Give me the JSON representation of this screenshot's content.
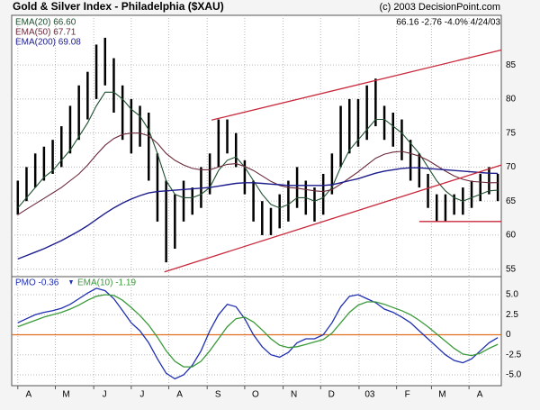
{
  "chart_data": [
    {
      "type": "hilo",
      "title": "Gold & Silver Index - Philadelphia ($XAU)",
      "credit": "(c) 2003 DecisionPoint.com",
      "quote": "66.16  -2.76  -4.0%  4/24/03",
      "color": "#000000",
      "high": [
        68,
        70,
        72,
        73,
        74,
        76,
        79,
        82,
        84,
        88,
        89,
        86,
        82,
        80,
        79,
        78,
        72,
        68,
        66,
        68,
        67,
        70,
        72,
        77,
        77,
        75,
        71,
        68,
        65,
        64,
        66,
        68,
        70,
        68,
        67,
        69,
        72,
        79,
        80,
        80,
        82,
        83,
        79,
        78,
        77,
        74,
        72,
        69,
        66,
        66,
        66,
        67,
        68,
        69,
        70,
        69
      ],
      "low": [
        63,
        65,
        67,
        68,
        69,
        70,
        72,
        74,
        77,
        80,
        82,
        78,
        74,
        72,
        73,
        68,
        62,
        56,
        58,
        62,
        63,
        64,
        66,
        70,
        72,
        70,
        66,
        62,
        60,
        60,
        61,
        62,
        64,
        63,
        62,
        63,
        66,
        70,
        72,
        73,
        74,
        76,
        74,
        73,
        71,
        68,
        67,
        64,
        62,
        62,
        63,
        63,
        64,
        65,
        66,
        65
      ],
      "series": [
        {
          "name": "EMA(20) 66.60",
          "color": "#1f4f2f",
          "values": [
            64,
            65.5,
            67,
            68.5,
            69.5,
            71,
            72.5,
            74.5,
            76.5,
            79,
            81,
            81,
            80,
            78.5,
            77.5,
            75.5,
            72,
            68,
            66,
            65.5,
            65.5,
            66,
            67,
            69.5,
            71,
            71.5,
            70,
            68,
            66,
            64.5,
            64,
            64.5,
            65.5,
            65.5,
            65,
            65.5,
            67,
            70,
            72.5,
            74,
            75.5,
            77,
            77,
            76,
            75,
            73.5,
            72,
            70,
            68,
            66.5,
            65.5,
            65,
            65.5,
            66,
            66.5,
            66.6
          ]
        },
        {
          "name": "EMA(50) 67.71",
          "color": "#6b2a3a",
          "values": [
            63,
            63.8,
            64.6,
            65.4,
            66.2,
            67,
            68,
            69,
            70.3,
            71.8,
            73.2,
            74.2,
            74.8,
            75,
            75,
            74.6,
            73.5,
            72,
            71,
            70.3,
            69.8,
            69.6,
            69.6,
            70,
            70.4,
            70.5,
            70.1,
            69.5,
            68.7,
            67.9,
            67.3,
            67,
            66.9,
            66.7,
            66.5,
            66.4,
            66.7,
            67.5,
            68.4,
            69.3,
            70.3,
            71.3,
            71.9,
            72.2,
            72.3,
            72,
            71.6,
            71,
            70.2,
            69.4,
            68.7,
            68.2,
            67.9,
            67.8,
            67.7,
            67.71
          ]
        },
        {
          "name": "EMA(200) 69.08",
          "color": "#1c1c8c",
          "values": [
            56.5,
            57,
            57.5,
            58,
            58.6,
            59.2,
            59.9,
            60.6,
            61.4,
            62.3,
            63.2,
            64,
            64.7,
            65.3,
            65.8,
            66.2,
            66.4,
            66.5,
            66.6,
            66.7,
            66.8,
            66.9,
            67,
            67.2,
            67.4,
            67.6,
            67.7,
            67.7,
            67.6,
            67.5,
            67.4,
            67.3,
            67.3,
            67.3,
            67.3,
            67.3,
            67.4,
            67.7,
            68,
            68.3,
            68.7,
            69.1,
            69.4,
            69.6,
            69.8,
            69.9,
            69.9,
            69.8,
            69.7,
            69.6,
            69.5,
            69.4,
            69.3,
            69.2,
            69.1,
            69.08
          ]
        }
      ],
      "trendlines": [
        {
          "color": "#c8283c",
          "x": [
            16.8,
            55.4
          ],
          "values": [
            54.6,
            70.3
          ]
        },
        {
          "color": "#c8283c",
          "x": [
            22.2,
            55.4
          ],
          "values": [
            76.9,
            87.2
          ]
        },
        {
          "color": "#c8283c",
          "x": [
            46,
            55.4
          ],
          "values": [
            62,
            62
          ]
        }
      ],
      "xlim": [
        -0.7,
        55.4
      ],
      "ylim": [
        53.9,
        92.3
      ],
      "yticks": [
        55,
        60,
        65,
        70,
        75,
        80,
        85
      ],
      "grid": true
    },
    {
      "type": "line",
      "series": [
        {
          "name": "PMO  -0.36",
          "color": "#1f2fb0",
          "values": [
            1.5,
            2,
            2.5,
            2.8,
            3,
            3.3,
            3.8,
            4.5,
            5.2,
            5.8,
            5.5,
            4.5,
            3,
            1.5,
            0.5,
            -1,
            -3,
            -4.8,
            -5.5,
            -5,
            -3.8,
            -2,
            0.5,
            2.5,
            3.8,
            3.5,
            2,
            0,
            -1.5,
            -2.5,
            -2.8,
            -2.2,
            -1,
            -0.5,
            -0.5,
            0,
            1.5,
            3.5,
            4.8,
            5,
            4.5,
            4,
            3.2,
            2.8,
            2.2,
            1.5,
            0.5,
            -0.5,
            -1.5,
            -2.5,
            -3.2,
            -3.5,
            -3,
            -2,
            -1,
            -0.36
          ]
        },
        {
          "name": "EMA(10)  -1.19",
          "color": "#3a9a3a",
          "values": [
            1,
            1.4,
            1.8,
            2.2,
            2.5,
            2.8,
            3.2,
            3.7,
            4.3,
            4.8,
            5,
            4.9,
            4.3,
            3.4,
            2.4,
            1.2,
            -0.3,
            -2,
            -3.3,
            -4,
            -4,
            -3.3,
            -2,
            -0.5,
            1,
            2,
            2.2,
            1.6,
            0.6,
            -0.5,
            -1.3,
            -1.6,
            -1.5,
            -1.2,
            -0.9,
            -0.6,
            0.2,
            1.5,
            2.8,
            3.7,
            4.1,
            4.1,
            3.8,
            3.4,
            3,
            2.5,
            1.8,
            1,
            0.1,
            -0.8,
            -1.7,
            -2.4,
            -2.6,
            -2.3,
            -1.7,
            -1.19
          ]
        }
      ],
      "reference_line": {
        "value": 0,
        "color": "#e07020"
      },
      "xlim": [
        -0.7,
        55.4
      ],
      "xticks": [
        {
          "value": 0,
          "label": "A"
        },
        {
          "value": 4.3,
          "label": "M"
        },
        {
          "value": 8.7,
          "label": "J"
        },
        {
          "value": 13,
          "label": "J"
        },
        {
          "value": 17.3,
          "label": "A"
        },
        {
          "value": 21.7,
          "label": "S"
        },
        {
          "value": 26,
          "label": "O"
        },
        {
          "value": 30.4,
          "label": "N"
        },
        {
          "value": 34.7,
          "label": "D"
        },
        {
          "value": 39.1,
          "label": "03"
        },
        {
          "value": 43.4,
          "label": "F"
        },
        {
          "value": 47.4,
          "label": "M"
        },
        {
          "value": 51.7,
          "label": "A"
        }
      ],
      "ylim": [
        -6.35,
        7.25
      ],
      "yticks": [
        {
          "value": 5,
          "label": "5.0"
        },
        2.5,
        0,
        -2.5,
        {
          "value": -5,
          "label": "-5.0"
        }
      ],
      "grid": true
    }
  ]
}
